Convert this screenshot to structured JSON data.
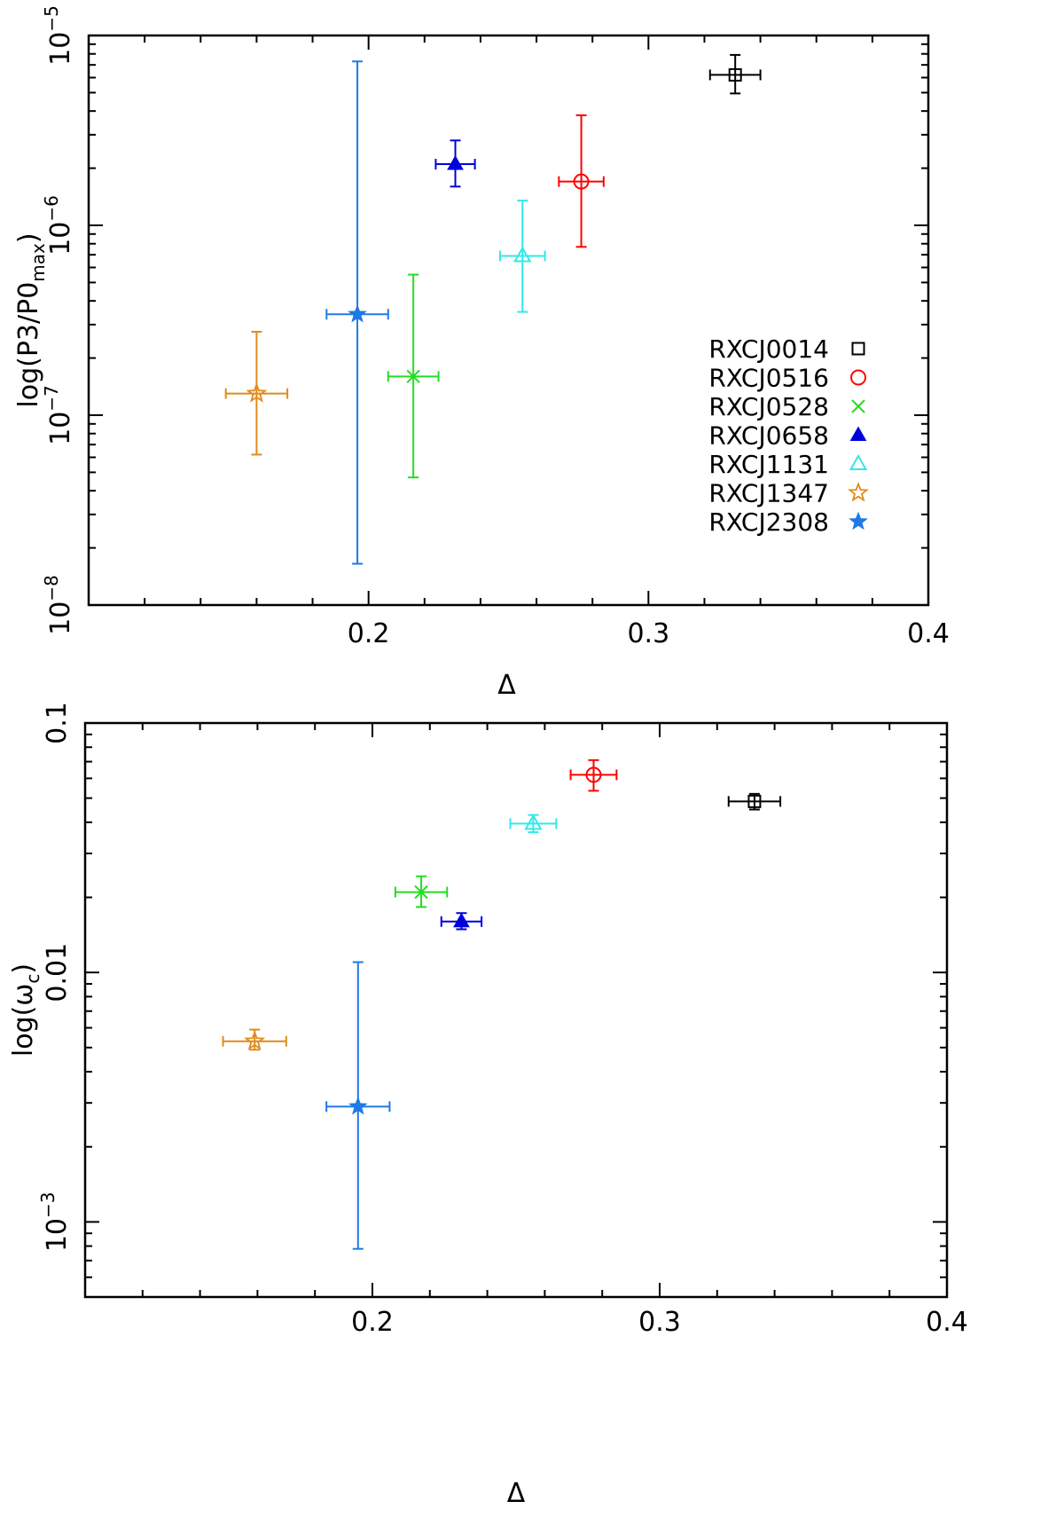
{
  "chart_data": [
    {
      "type": "scatter",
      "title": "",
      "xlabel": "Δ",
      "ylabel": "log(P3/P0_max)",
      "ylabel_parts": {
        "pre": "log(P3/P0",
        "sub": "max",
        "post": ")"
      },
      "xlim": [
        0.1,
        0.4
      ],
      "ylim": [
        1e-08,
        1e-05
      ],
      "yscale": "log",
      "x_ticks": [
        {
          "value": 0.2,
          "label": "0.2"
        },
        {
          "value": 0.3,
          "label": "0.3"
        },
        {
          "value": 0.4,
          "label": "0.4"
        }
      ],
      "y_ticks": [
        {
          "value": 1e-08,
          "base": "10",
          "exp": "−8"
        },
        {
          "value": 1e-07,
          "base": "10",
          "exp": "−7"
        },
        {
          "value": 1e-06,
          "base": "10",
          "exp": "−6"
        },
        {
          "value": 1e-05,
          "base": "10",
          "exp": "−5"
        }
      ],
      "legend_position": "right",
      "series": [
        {
          "name": "RXCJ0014",
          "color": "#000000",
          "marker": "open-square",
          "x": 0.331,
          "x_err": 0.009,
          "y": 6.2e-06,
          "y_low": 4.95e-06,
          "y_high": 7.9e-06
        },
        {
          "name": "RXCJ0516",
          "color": "#ff0000",
          "marker": "open-circle",
          "x": 0.276,
          "x_err": 0.008,
          "y": 1.7e-06,
          "y_low": 7.7e-07,
          "y_high": 3.8e-06
        },
        {
          "name": "RXCJ0528",
          "color": "#22dd22",
          "marker": "cross",
          "x": 0.216,
          "x_err": 0.009,
          "y": 1.6e-07,
          "y_low": 4.7e-08,
          "y_high": 5.5e-07
        },
        {
          "name": "RXCJ0658",
          "color": "#0000dd",
          "marker": "filled-triangle",
          "x": 0.231,
          "x_err": 0.007,
          "y": 2.1e-06,
          "y_low": 1.6e-06,
          "y_high": 2.8e-06
        },
        {
          "name": "RXCJ1131",
          "color": "#33e8e8",
          "marker": "open-triangle",
          "x": 0.255,
          "x_err": 0.008,
          "y": 6.9e-07,
          "y_low": 3.5e-07,
          "y_high": 1.35e-06
        },
        {
          "name": "RXCJ1347",
          "color": "#e08b1c",
          "marker": "open-star",
          "x": 0.16,
          "x_err": 0.011,
          "y": 1.3e-07,
          "y_low": 6.2e-08,
          "y_high": 2.75e-07
        },
        {
          "name": "RXCJ2308",
          "color": "#1e7ae6",
          "marker": "filled-star",
          "x": 0.196,
          "x_err": 0.011,
          "y": 3.4e-07,
          "y_low": 1.65e-08,
          "y_high": 7.3e-06
        }
      ]
    },
    {
      "type": "scatter",
      "title": "",
      "xlabel": "Δ",
      "ylabel": "log(ω_c)",
      "ylabel_parts": {
        "pre": "log(ω",
        "sub": "c",
        "post": ")"
      },
      "xlim": [
        0.1,
        0.4
      ],
      "ylim": [
        0.0005,
        0.1
      ],
      "yscale": "log",
      "x_ticks": [
        {
          "value": 0.2,
          "label": "0.2"
        },
        {
          "value": 0.3,
          "label": "0.3"
        },
        {
          "value": 0.4,
          "label": "0.4"
        }
      ],
      "y_ticks": [
        {
          "value": 0.001,
          "base": "10",
          "exp": "−3"
        },
        {
          "value": 0.01,
          "base": "0.01",
          "exp": ""
        },
        {
          "value": 0.1,
          "base": "0.1",
          "exp": ""
        }
      ],
      "series": [
        {
          "name": "RXCJ0014",
          "color": "#000000",
          "marker": "open-square",
          "x": 0.333,
          "x_err": 0.009,
          "y": 0.0485,
          "y_low": 0.045,
          "y_high": 0.052
        },
        {
          "name": "RXCJ0516",
          "color": "#ff0000",
          "marker": "open-circle",
          "x": 0.277,
          "x_err": 0.008,
          "y": 0.062,
          "y_low": 0.0535,
          "y_high": 0.071
        },
        {
          "name": "RXCJ0528",
          "color": "#22dd22",
          "marker": "cross",
          "x": 0.217,
          "x_err": 0.009,
          "y": 0.021,
          "y_low": 0.0183,
          "y_high": 0.0243
        },
        {
          "name": "RXCJ0658",
          "color": "#0000dd",
          "marker": "filled-triangle",
          "x": 0.231,
          "x_err": 0.007,
          "y": 0.016,
          "y_low": 0.0149,
          "y_high": 0.0173
        },
        {
          "name": "RXCJ1131",
          "color": "#33e8e8",
          "marker": "open-triangle",
          "x": 0.256,
          "x_err": 0.008,
          "y": 0.0395,
          "y_low": 0.0365,
          "y_high": 0.0428
        },
        {
          "name": "RXCJ1347",
          "color": "#e08b1c",
          "marker": "open-star",
          "x": 0.159,
          "x_err": 0.011,
          "y": 0.0053,
          "y_low": 0.0049,
          "y_high": 0.0059
        },
        {
          "name": "RXCJ2308",
          "color": "#1e7ae6",
          "marker": "filled-star",
          "x": 0.195,
          "x_err": 0.011,
          "y": 0.0029,
          "y_low": 0.00078,
          "y_high": 0.011
        }
      ]
    }
  ]
}
